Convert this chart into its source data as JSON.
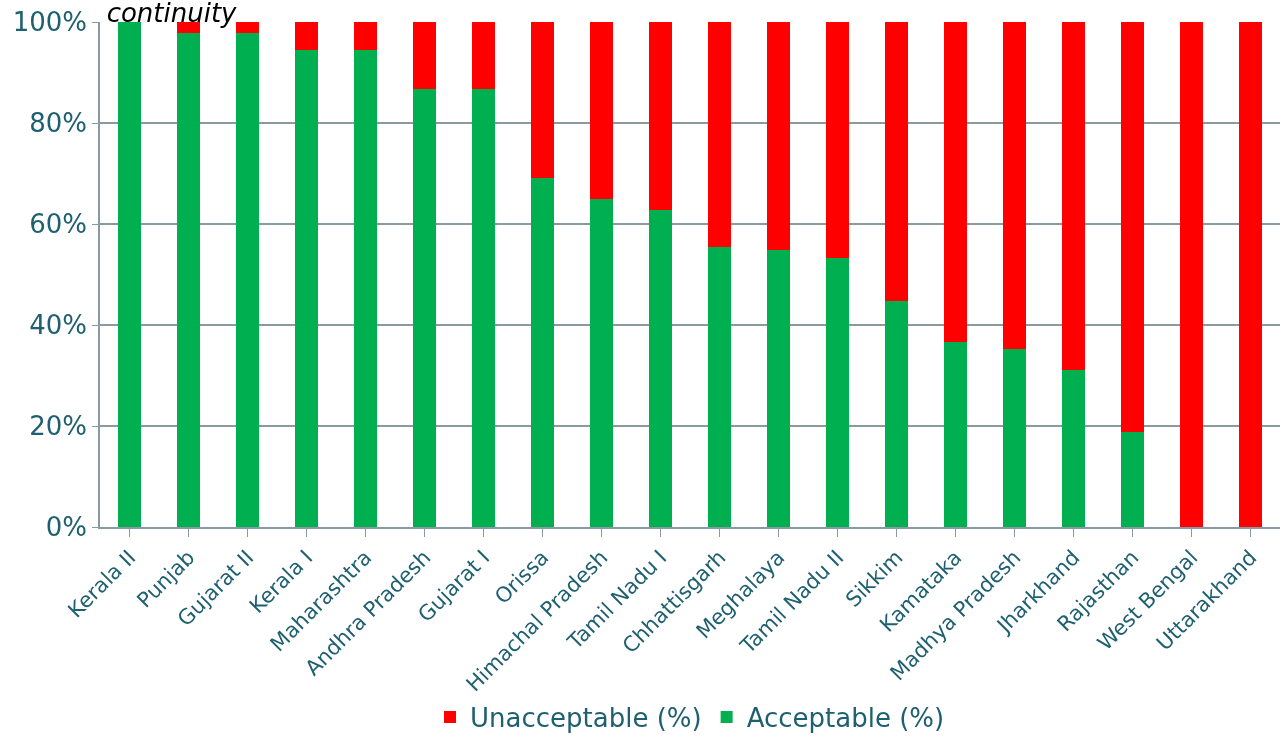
{
  "chart_data": {
    "type": "bar",
    "title": "continuity",
    "stacked": true,
    "categories": [
      "Kerala II",
      "Punjab",
      "Gujarat II",
      "Kerala I",
      "Maharashtra",
      "Andhra Pradesh",
      "Gujarat I",
      "Orissa",
      "Himachal Pradesh",
      "Tamil Nadu I",
      "Chhattisgarh",
      "Meghalaya",
      "Tamil Nadu II",
      "Sikkim",
      "Kamataka",
      "Madhya Pradesh",
      "Jharkhand",
      "Rajasthan",
      "West Bengal",
      "Uttarakhand"
    ],
    "series": [
      {
        "name": "Acceptable (%)",
        "color": "#00b050",
        "values": [
          100,
          97.9,
          97.9,
          94.4,
          94.4,
          86.7,
          86.7,
          69.2,
          64.9,
          62.8,
          55.5,
          54.9,
          53.3,
          44.8,
          36.7,
          35.2,
          31.1,
          18.8,
          0,
          0
        ]
      },
      {
        "name": "Unacceptable (%)",
        "color": "#ff0000",
        "values": [
          0,
          2.1,
          2.1,
          5.6,
          5.6,
          13.3,
          13.3,
          30.8,
          35.1,
          37.2,
          44.5,
          45.1,
          46.7,
          55.2,
          63.3,
          64.8,
          68.9,
          81.2,
          100,
          100
        ]
      }
    ],
    "ylim": [
      0,
      100
    ],
    "yticks": [
      {
        "value": 0,
        "label": "0%"
      },
      {
        "value": 20,
        "label": "20%"
      },
      {
        "value": 40,
        "label": "40%"
      },
      {
        "value": 60,
        "label": "60%"
      },
      {
        "value": 80,
        "label": "80%"
      },
      {
        "value": 100,
        "label": "100%"
      }
    ],
    "grid": "y",
    "legend": "bottom"
  }
}
